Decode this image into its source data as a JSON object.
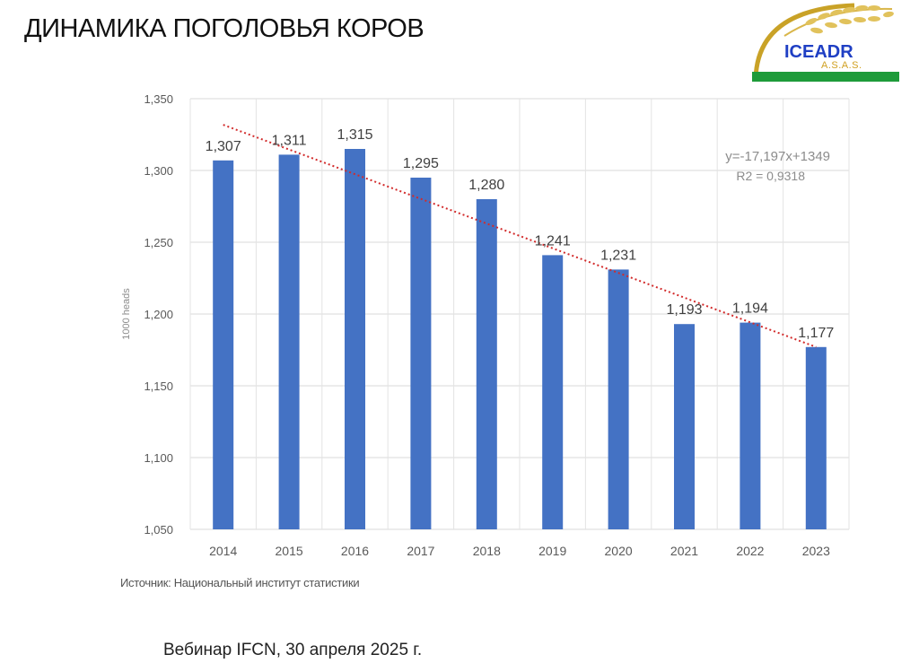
{
  "slide": {
    "title": "ДИНАМИКА ПОГОЛОВЬЯ КОРОВ",
    "source": "Источник: Национальный институт статистики",
    "footer": "Вебинар IFCN, 30 апреля 2025 г."
  },
  "logo": {
    "name": "ICEADR",
    "subtitle": "A.S.A.S.",
    "icon": "wheat-icon",
    "colors": {
      "arc": "#c9a227",
      "band": "#1e9b3a",
      "text": "#1f3fc4"
    }
  },
  "chart_data": {
    "type": "bar",
    "title": "",
    "xlabel": "",
    "ylabel": "1000 heads",
    "categories": [
      "2014",
      "2015",
      "2016",
      "2017",
      "2018",
      "2019",
      "2020",
      "2021",
      "2022",
      "2023"
    ],
    "values": [
      1307,
      1311,
      1315,
      1295,
      1280,
      1241,
      1231,
      1193,
      1194,
      1177
    ],
    "value_labels": [
      "1,307",
      "1,311",
      "1,315",
      "1,295",
      "1,280",
      "1,241",
      "1,231",
      "1,193",
      "1,194",
      "1,177"
    ],
    "ylim": [
      1050,
      1350
    ],
    "yticks": [
      1050,
      1100,
      1150,
      1200,
      1250,
      1300,
      1350
    ],
    "ytick_labels": [
      "1,050",
      "1,100",
      "1,150",
      "1,200",
      "1,250",
      "1,300",
      "1,350"
    ],
    "grid": true,
    "bar_color": "#4472c4",
    "trendline": {
      "type": "linear",
      "slope": -17.197,
      "intercept": 1349,
      "equation": "y=-17,197x+1349",
      "r2_label": "R2 = 0,9318",
      "color": "#d22b2b",
      "style": "dotted"
    }
  }
}
